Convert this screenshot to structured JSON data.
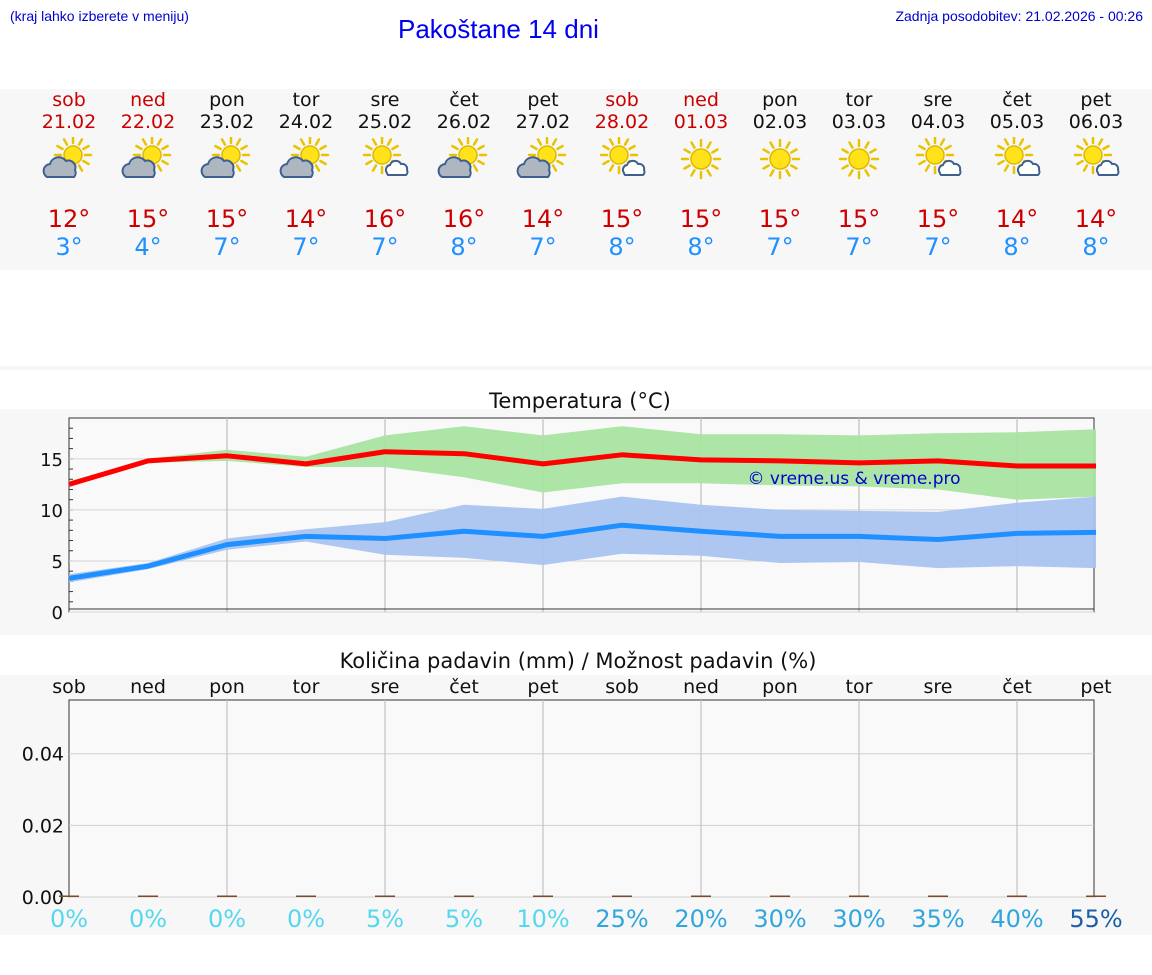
{
  "header": {
    "menu_hint": "(kraj lahko izberete v meniju)",
    "title": "Pakoštane 14 dni",
    "updated": "Zadnja posodobitev: 21.02.2026 - 00:26"
  },
  "days": [
    {
      "name": "sob",
      "date": "21.02",
      "weekend": true,
      "icon": "partly-cloudy-icon",
      "tmax": "12°",
      "tmin": "3°"
    },
    {
      "name": "ned",
      "date": "22.02",
      "weekend": true,
      "icon": "partly-cloudy-icon",
      "tmax": "15°",
      "tmin": "4°"
    },
    {
      "name": "pon",
      "date": "23.02",
      "weekend": false,
      "icon": "partly-cloudy-icon",
      "tmax": "15°",
      "tmin": "7°"
    },
    {
      "name": "tor",
      "date": "24.02",
      "weekend": false,
      "icon": "partly-cloudy-icon",
      "tmax": "14°",
      "tmin": "7°"
    },
    {
      "name": "sre",
      "date": "25.02",
      "weekend": false,
      "icon": "sun-small-cloud-icon",
      "tmax": "16°",
      "tmin": "7°"
    },
    {
      "name": "čet",
      "date": "26.02",
      "weekend": false,
      "icon": "partly-cloudy-icon",
      "tmax": "16°",
      "tmin": "8°"
    },
    {
      "name": "pet",
      "date": "27.02",
      "weekend": false,
      "icon": "partly-cloudy-icon",
      "tmax": "14°",
      "tmin": "7°"
    },
    {
      "name": "sob",
      "date": "28.02",
      "weekend": true,
      "icon": "sun-small-cloud-icon",
      "tmax": "15°",
      "tmin": "8°"
    },
    {
      "name": "ned",
      "date": "01.03",
      "weekend": true,
      "icon": "sun-icon",
      "tmax": "15°",
      "tmin": "8°"
    },
    {
      "name": "pon",
      "date": "02.03",
      "weekend": false,
      "icon": "sun-icon",
      "tmax": "15°",
      "tmin": "7°"
    },
    {
      "name": "tor",
      "date": "03.03",
      "weekend": false,
      "icon": "sun-icon",
      "tmax": "15°",
      "tmin": "7°"
    },
    {
      "name": "sre",
      "date": "04.03",
      "weekend": false,
      "icon": "sun-small-cloud-icon",
      "tmax": "15°",
      "tmin": "7°"
    },
    {
      "name": "čet",
      "date": "05.03",
      "weekend": false,
      "icon": "sun-small-cloud-icon",
      "tmax": "14°",
      "tmin": "8°"
    },
    {
      "name": "pet",
      "date": "06.03",
      "weekend": false,
      "icon": "sun-small-cloud-icon",
      "tmax": "14°",
      "tmin": "8°"
    }
  ],
  "colors": {
    "weekend": "#cc0000",
    "weekday": "#111111",
    "tmax": "#cc0000",
    "tmin": "#1e90ff",
    "max_line": "#ff0000",
    "min_line": "#1e90ff",
    "max_band": "#a8e4a0",
    "min_band": "#a9c4f0",
    "watermark": "#0000cc"
  },
  "chart_data": [
    {
      "type": "line",
      "title": "Temperatura (°C)",
      "x": [
        0,
        1,
        2,
        3,
        4,
        5,
        6,
        7,
        8,
        9,
        10,
        11,
        12,
        13
      ],
      "ylim": [
        0,
        19
      ],
      "yticks": [
        0,
        5,
        10,
        15
      ],
      "grid": true,
      "watermark": "© vreme.us & vreme.pro",
      "series": [
        {
          "name": "max",
          "values": [
            12.5,
            14.8,
            15.3,
            14.5,
            15.7,
            15.5,
            14.5,
            15.4,
            14.9,
            14.8,
            14.6,
            14.8,
            14.3,
            14.3
          ],
          "band_low": [
            12.3,
            14.6,
            14.8,
            14.2,
            14.2,
            13.2,
            11.7,
            12.6,
            12.6,
            12.4,
            12.3,
            12.0,
            11.0,
            11.3
          ],
          "band_high": [
            12.8,
            15.0,
            15.9,
            15.2,
            17.3,
            18.2,
            17.3,
            18.2,
            17.4,
            17.4,
            17.3,
            17.5,
            17.6,
            17.9
          ]
        },
        {
          "name": "min",
          "values": [
            3.3,
            4.5,
            6.6,
            7.4,
            7.2,
            7.9,
            7.4,
            8.5,
            7.9,
            7.4,
            7.4,
            7.1,
            7.7,
            7.8
          ],
          "band_low": [
            2.9,
            4.2,
            6.1,
            6.9,
            5.6,
            5.3,
            4.6,
            5.7,
            5.5,
            4.8,
            4.9,
            4.3,
            4.5,
            4.3
          ],
          "band_high": [
            3.7,
            4.8,
            7.2,
            8.1,
            8.8,
            10.5,
            10.1,
            11.3,
            10.5,
            10.0,
            9.9,
            9.8,
            10.7,
            11.3
          ]
        }
      ]
    },
    {
      "type": "bar",
      "title": "Količina padavin (mm) / Možnost padavin (%)",
      "categories": [
        "sob",
        "ned",
        "pon",
        "tor",
        "sre",
        "čet",
        "pet",
        "sob",
        "ned",
        "pon",
        "tor",
        "sre",
        "čet",
        "pet"
      ],
      "values": [
        0,
        0,
        0,
        0,
        0,
        0,
        0,
        0,
        0,
        0,
        0,
        0,
        0,
        0
      ],
      "ylim": [
        0,
        0.055
      ],
      "yticks": [
        "0.00",
        "0.02",
        "0.04"
      ],
      "ytick_values": [
        0,
        0.02,
        0.04
      ],
      "probability": [
        "0%",
        "0%",
        "0%",
        "0%",
        "5%",
        "5%",
        "10%",
        "25%",
        "20%",
        "30%",
        "30%",
        "35%",
        "40%",
        "55%"
      ],
      "probability_colors": [
        "#55d8ee",
        "#55d8ee",
        "#55d8ee",
        "#55d8ee",
        "#55d8ee",
        "#55d8ee",
        "#55d8ee",
        "#2fa6dd",
        "#2fa6dd",
        "#2fa6dd",
        "#2fa6dd",
        "#2fa6dd",
        "#2fa6dd",
        "#1a5fa8"
      ]
    }
  ]
}
